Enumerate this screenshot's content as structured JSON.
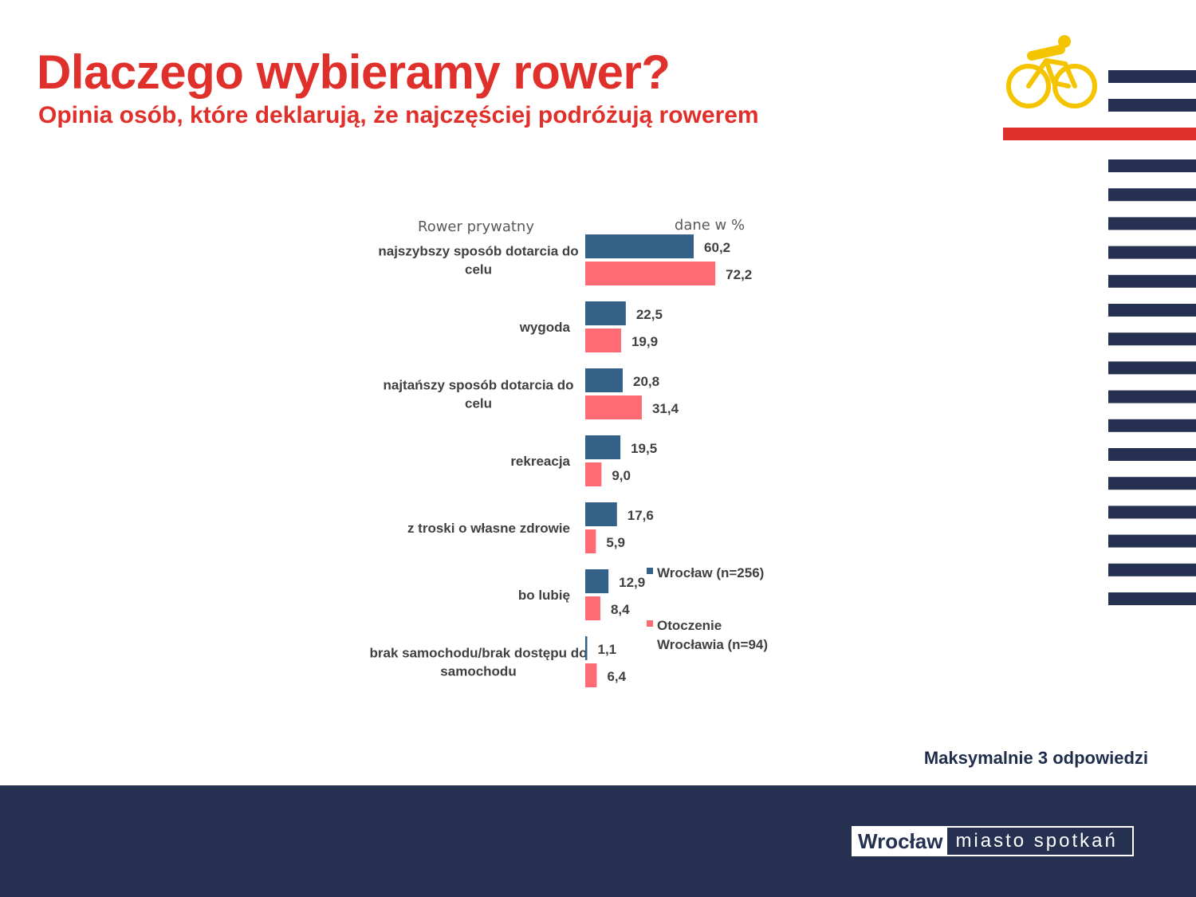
{
  "header": {
    "title": "Dlaczego wybieramy rower?",
    "subtitle": "Opinia osób, które deklarują, że najczęściej podróżują rowerem"
  },
  "icons": {
    "cyclist": "cyclist-icon"
  },
  "colors": {
    "accent_red": "#e0302b",
    "navy": "#263152",
    "series_wroclaw": "#336187",
    "series_otoczenie": "#ff6b74",
    "cyclist_yellow": "#f5c400"
  },
  "chart_data": {
    "type": "bar",
    "orientation": "horizontal",
    "title": "Rower prywatny",
    "unit_note": "dane w %",
    "categories": [
      "najszybszy sposób dotarcia do celu",
      "wygoda",
      "najtańszy sposób dotarcia do celu",
      "rekreacja",
      "z troski o własne zdrowie",
      "bo lubię",
      "brak samochodu/brak dostępu do samochodu"
    ],
    "series": [
      {
        "name": "Wrocław (n=256)",
        "values": [
          60.2,
          22.5,
          20.8,
          19.5,
          17.6,
          12.9,
          1.1
        ]
      },
      {
        "name": "Otoczenie Wrocławia (n=94)",
        "values": [
          72.2,
          19.9,
          31.4,
          9.0,
          5.9,
          8.4,
          6.4
        ]
      }
    ],
    "value_labels": [
      [
        "60,2",
        "22,5",
        "20,8",
        "19,5",
        "17,6",
        "12,9",
        "1,1"
      ],
      [
        "72,2",
        "19,9",
        "31,4",
        "9,0",
        "5,9",
        "8,4",
        "6,4"
      ]
    ],
    "legend_position": "right",
    "grid": false
  },
  "note": "Maksymalnie 3 odpowiedzi",
  "brand": {
    "city": "Wrocław",
    "tagline": "miasto spotkań"
  }
}
